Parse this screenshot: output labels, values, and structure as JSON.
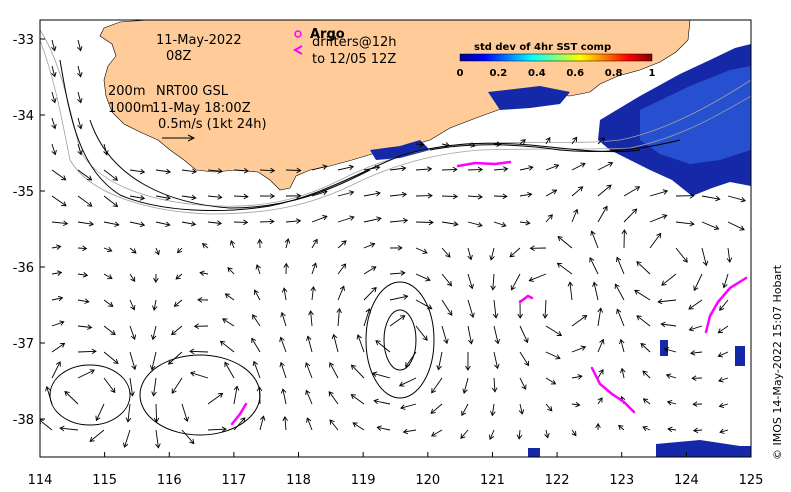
{
  "map": {
    "lon_ticks": [
      114,
      115,
      116,
      117,
      118,
      119,
      120,
      121,
      122,
      123,
      124,
      125
    ],
    "lat_ticks": [
      -33,
      -34,
      -35,
      -36,
      -37,
      -38
    ],
    "lon_range": [
      114,
      125
    ],
    "lat_range": [
      -38.5,
      -32.75
    ]
  },
  "annotations": {
    "date": "11-May-2022",
    "time": "08Z",
    "depth_200": "200m",
    "depth_1000": "1000m",
    "product": "NRT00 GSL",
    "product_time": "11-May 18:00Z",
    "scale_arrow_label": "0.5m/s (1kt 24h)"
  },
  "legend": {
    "argo_marker": "o",
    "argo_label": "Argo",
    "drifter_marker": "<",
    "drifter_label_line1": "drifters@12h",
    "drifter_label_line2": "to 12/05 12Z"
  },
  "colorbar": {
    "title": "std dev of 4hr SST comp",
    "ticks": [
      "0",
      "0.2",
      "0.4",
      "0.6",
      "0.8",
      "1"
    ]
  },
  "credit": "© IMOS 14-May-2022 15:07 Hobart",
  "colors": {
    "land": "#ffcc99",
    "drifter": "#ff00ff",
    "sst_high": "#0000aa"
  }
}
